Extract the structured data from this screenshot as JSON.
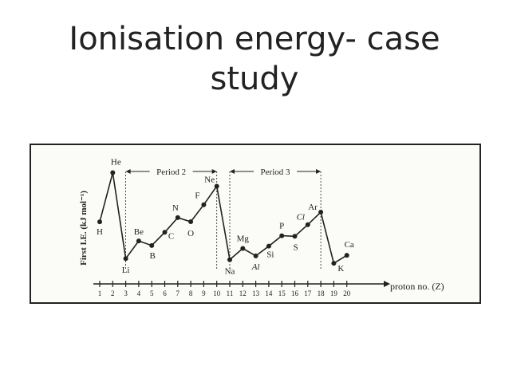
{
  "title": {
    "line1": "Ionisation energy- case",
    "line2": "study"
  },
  "chart_data": {
    "type": "line",
    "ylabel": "First I.E. (kJ mol⁻¹)",
    "xlabel": "proton no. (Z)",
    "x": [
      1,
      2,
      3,
      4,
      5,
      6,
      7,
      8,
      9,
      10,
      11,
      12,
      13,
      14,
      15,
      16,
      17,
      18,
      19,
      20
    ],
    "ticks": [
      "1",
      "2",
      "3",
      "4",
      "5",
      "6",
      "7",
      "8",
      "9",
      "10",
      "11",
      "12",
      "13",
      "14",
      "15",
      "16",
      "17",
      "18",
      "19",
      "20"
    ],
    "element_labels": [
      "H",
      "He",
      "Li",
      "Be",
      "B",
      "C",
      "N",
      "O",
      "F",
      "Ne",
      "Na",
      "Mg",
      "Al",
      "Si",
      "P",
      "S",
      "Cl",
      "Ar",
      "K",
      "Ca"
    ],
    "values": [
      1312,
      2372,
      520,
      900,
      801,
      1086,
      1402,
      1314,
      1681,
      2081,
      496,
      738,
      578,
      787,
      1012,
      1000,
      1251,
      1521,
      419,
      590
    ],
    "ylim": [
      300,
      2450
    ],
    "brackets": [
      {
        "label": "Period 2",
        "from": 3,
        "to": 10
      },
      {
        "label": "Period 3",
        "from": 11,
        "to": 18
      }
    ],
    "color": "#222222"
  }
}
